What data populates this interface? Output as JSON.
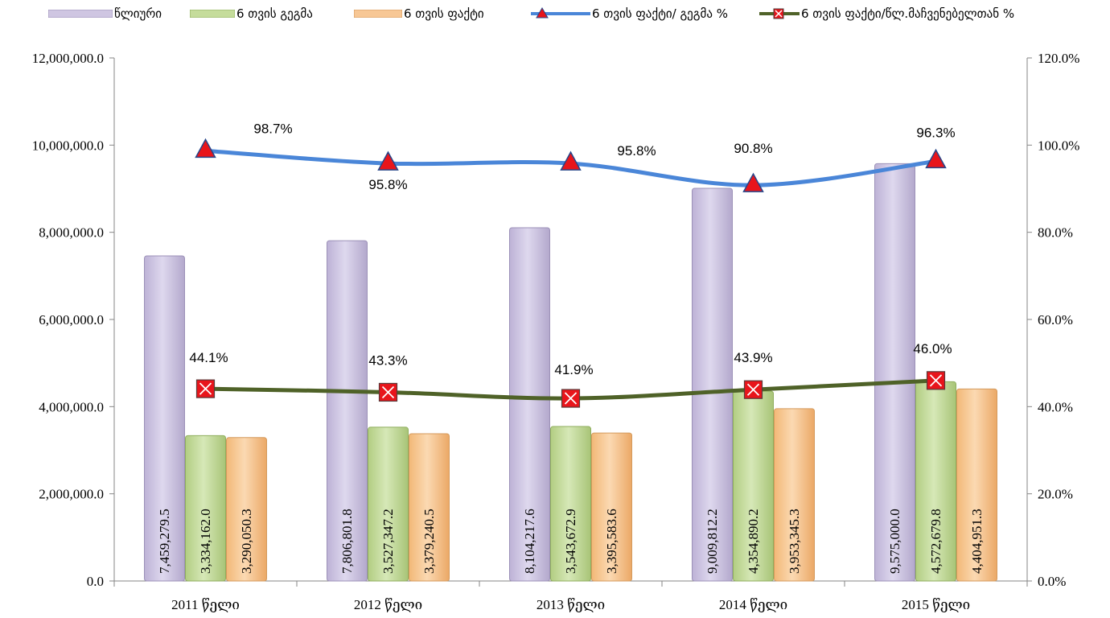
{
  "legend": [
    {
      "label": "წლიური"
    },
    {
      "label": "6 თვის გეგმა"
    },
    {
      "label": "6 თვის ფაქტი"
    },
    {
      "label": "6 თვის ფაქტი/ გეგმა %"
    },
    {
      "label": "6 თვის ფაქტი/წლ.მაჩვენებელთან %"
    }
  ],
  "chart_data": {
    "type": "bar",
    "categories": [
      "2011 წელი",
      "2012 წელი",
      "2013 წელი",
      "2014 წელი",
      "2015 წელი"
    ],
    "series": [
      {
        "name": "წლიური",
        "axis": "left",
        "values": [
          7459279.5,
          7806801.8,
          8104217.6,
          9009812.2,
          9575000.0
        ],
        "labels": [
          "7,459,279.5",
          "7,806,801.8",
          "8,104,217.6",
          "9,009,812.2",
          "9,575,000.0"
        ],
        "color": "#cfc6e2"
      },
      {
        "name": "6 თვის გეგმა",
        "axis": "left",
        "values": [
          3334162.0,
          3527347.2,
          3543672.9,
          4354890.2,
          4572679.8
        ],
        "labels": [
          "3,334,162.0",
          "3,527,347.2",
          "3,543,672.9",
          "4,354,890.2",
          "4,572,679.8"
        ],
        "color": "#c5dc9b"
      },
      {
        "name": "6 თვის ფაქტი",
        "axis": "left",
        "values": [
          3290050.3,
          3379240.5,
          3395583.6,
          3953345.3,
          4404951.3
        ],
        "labels": [
          "3,290,050.3",
          "3,379,240.5",
          "3,395,583.6",
          "3,953,345.3",
          "4,404,951.3"
        ],
        "color": "#f7c795"
      },
      {
        "name": "6 თვის ფაქტი/ გეგმა %",
        "type": "line",
        "axis": "right",
        "values": [
          98.7,
          95.8,
          95.8,
          90.8,
          96.3
        ],
        "labels": [
          "98.7%",
          "95.8%",
          "95.8%",
          "90.8%",
          "96.3%"
        ],
        "color": "#4a86d8",
        "marker_color": "#e8151b"
      },
      {
        "name": "6 თვის ფაქტი/წლ.მაჩვენებელთან %",
        "type": "line",
        "axis": "right",
        "values": [
          44.1,
          43.3,
          41.9,
          43.9,
          46.0
        ],
        "labels": [
          "44.1%",
          "43.3%",
          "41.9%",
          "43.9%",
          "46.0%"
        ],
        "color": "#4f6228",
        "marker_color": "#e8151b"
      }
    ],
    "left_axis": {
      "min": 0,
      "max": 12000000,
      "step": 2000000,
      "tick_labels": [
        "0.0",
        "2,000,000.0",
        "4,000,000.0",
        "6,000,000.0",
        "8,000,000.0",
        "10,000,000.0",
        "12,000,000.0"
      ]
    },
    "right_axis": {
      "min": 0,
      "max": 120,
      "step": 20,
      "tick_labels": [
        "0.0%",
        "20.0%",
        "40.0%",
        "60.0%",
        "80.0%",
        "100.0%",
        "120.0%"
      ]
    },
    "grid": false,
    "legend_position": "top"
  }
}
